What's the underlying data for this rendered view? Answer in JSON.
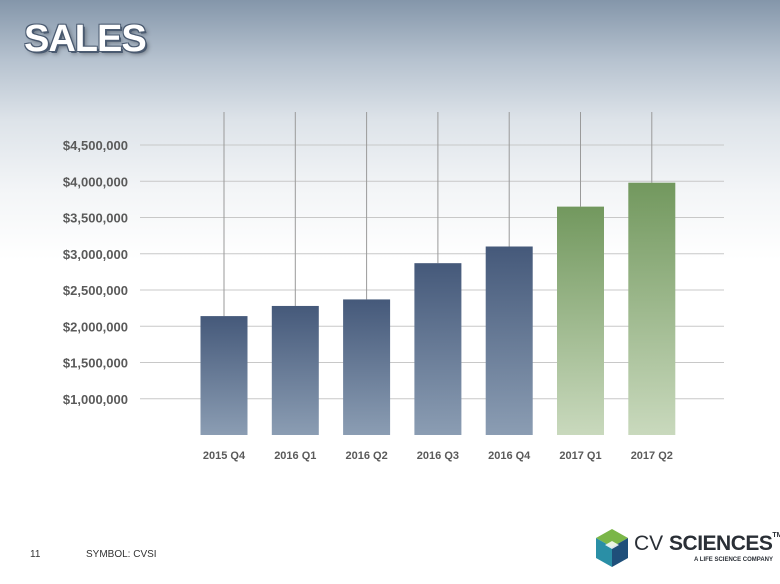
{
  "slide": {
    "title": "SALES",
    "page_number": "11",
    "symbol": "SYMBOL: CVSI"
  },
  "logo": {
    "name_part1": "CV",
    "name_part2": "SCIENCES",
    "trademark": "TM",
    "tagline": "A LIFE SCIENCE COMPANY",
    "colors": {
      "green": "#7ab648",
      "teal": "#2a8fa6",
      "blue": "#1f4f7a"
    }
  },
  "chart_data": {
    "type": "bar",
    "title": "",
    "xlabel": "",
    "ylabel": "",
    "categories": [
      "2015 Q4",
      "2016 Q1",
      "2016 Q2",
      "2016 Q3",
      "2016 Q4",
      "2017 Q1",
      "2017 Q2"
    ],
    "values": [
      2140000,
      2280000,
      2370000,
      2870000,
      3100000,
      3650000,
      3980000
    ],
    "ylim": [
      500000,
      4500000
    ],
    "yticks": [
      1000000,
      1500000,
      2000000,
      2500000,
      3000000,
      3500000,
      4000000,
      4500000
    ],
    "ytick_labels": [
      "$1,000,000",
      "$1,500,000",
      "$2,000,000",
      "$2,500,000",
      "$3,000,000",
      "$3,500,000",
      "$4,000,000",
      "$4,500,000"
    ],
    "grid": true,
    "legend": "none",
    "colors": {
      "blue_top": "#45597a",
      "blue_bottom": "#8b9db3",
      "green_top": "#72985e",
      "green_bottom": "#c9d9bd",
      "green_from_index": 5
    }
  }
}
